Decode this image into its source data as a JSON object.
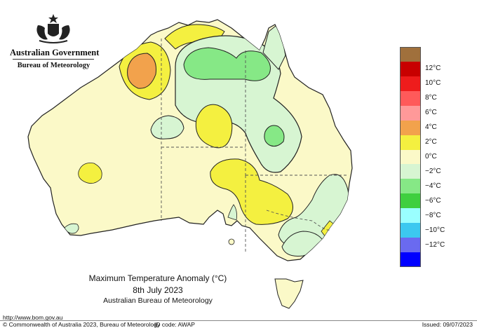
{
  "header": {
    "government": "Australian Government",
    "bureau": "Bureau of Meteorology"
  },
  "legend": {
    "items": [
      {
        "label": "",
        "color": "#a0703c"
      },
      {
        "label": "12°C",
        "color": "#c80000"
      },
      {
        "label": "10°C",
        "color": "#ee1c1c"
      },
      {
        "label": "8°C",
        "color": "#ff5a5a"
      },
      {
        "label": "6°C",
        "color": "#ff9999"
      },
      {
        "label": "4°C",
        "color": "#f2a24c"
      },
      {
        "label": "2°C",
        "color": "#f4f040"
      },
      {
        "label": "0°C",
        "color": "#fbf9c8"
      },
      {
        "label": "−2°C",
        "color": "#d7f5d2"
      },
      {
        "label": "−4°C",
        "color": "#86e886"
      },
      {
        "label": "−6°C",
        "color": "#3fcf3f"
      },
      {
        "label": "−8°C",
        "color": "#9affff"
      },
      {
        "label": "−10°C",
        "color": "#3cc8f0"
      },
      {
        "label": "−12°C",
        "color": "#6a6af0"
      },
      {
        "label": "",
        "color": "#0000ff"
      }
    ]
  },
  "map": {
    "title": "Maximum Temperature Anomaly (°C)",
    "date": "8th July 2023",
    "source": "Australian Bureau of Meteorology",
    "land_color": "#fbf9c8",
    "warm_color": "#f4f040",
    "hot_color": "#f2a24c",
    "cool_color": "#d7f5d2",
    "cold_color": "#86e886"
  },
  "footer": {
    "url": "http://www.bom.gov.au",
    "copyright": "© Commonwealth of Australia 2023, Bureau of Meteorology",
    "id_code": "ID code: AWAP",
    "issued": "Issued: 09/07/2023"
  }
}
